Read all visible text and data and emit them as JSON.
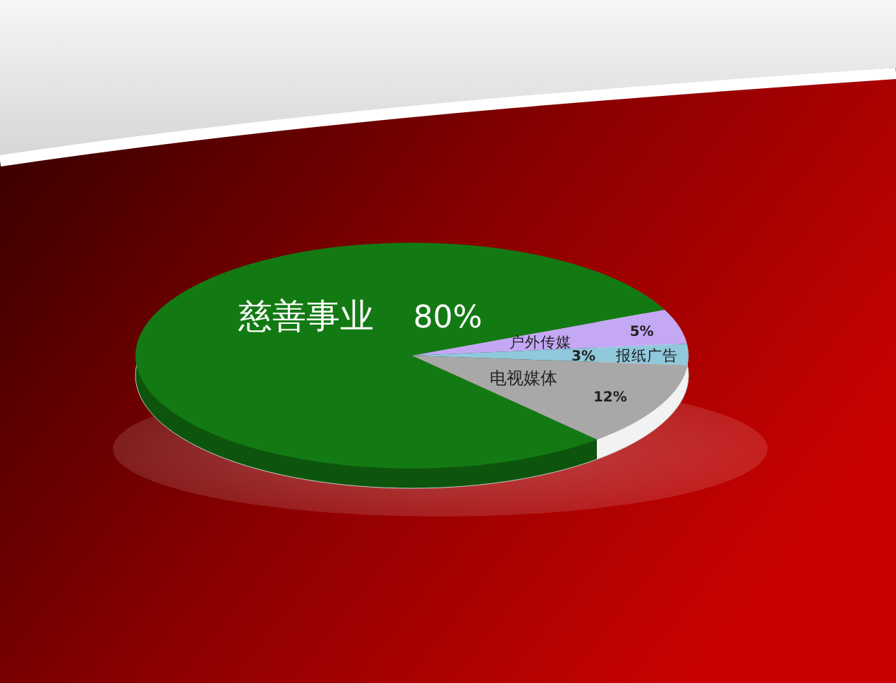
{
  "chart_data": {
    "type": "pie",
    "categories": [
      "慈善事业",
      "户外传媒",
      "报纸广告",
      "电视媒体"
    ],
    "values": [
      80,
      5,
      3,
      12
    ],
    "value_labels": [
      "80%",
      "5%",
      "3%",
      "12%"
    ],
    "colors": [
      "#137a13",
      "#c4a8f4",
      "#90c8dc",
      "#a8a8a8"
    ]
  }
}
